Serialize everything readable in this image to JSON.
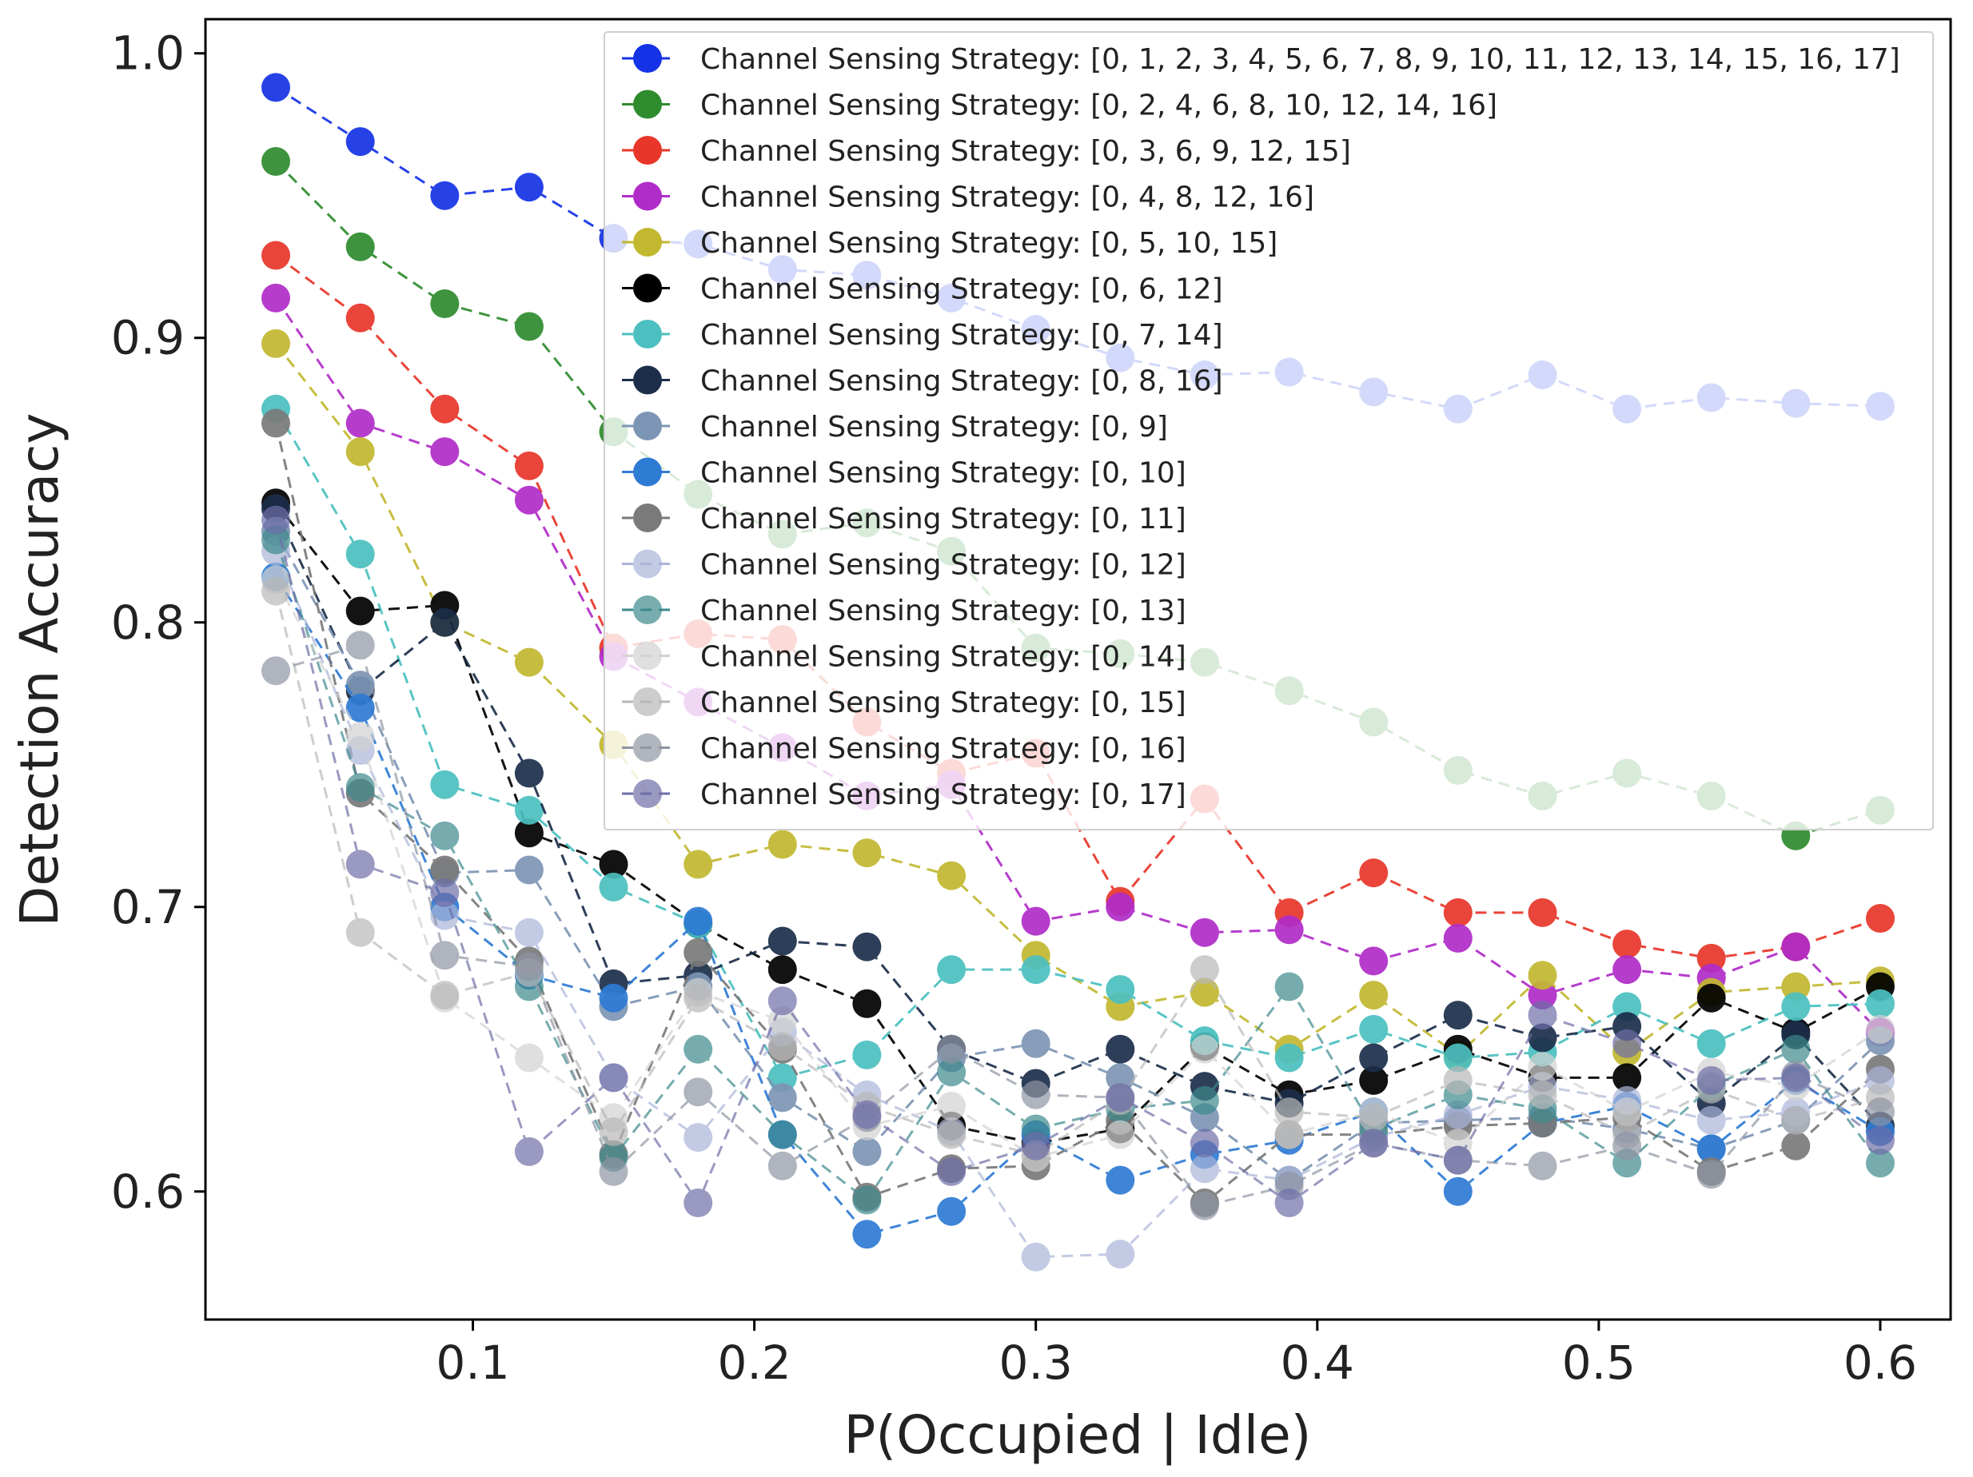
{
  "chart_data": {
    "type": "line",
    "title": "",
    "xlabel": "P(Occupied | Idle)",
    "ylabel": "Detection Accuracy",
    "xlim": [
      0.005,
      0.625
    ],
    "ylim": [
      0.555,
      1.012
    ],
    "xticks": [
      0.1,
      0.2,
      0.3,
      0.4,
      0.5,
      0.6
    ],
    "xtick_labels": [
      "0.1",
      "0.2",
      "0.3",
      "0.4",
      "0.5",
      "0.6"
    ],
    "yticks": [
      0.6,
      0.7,
      0.8,
      0.9,
      1.0
    ],
    "ytick_labels": [
      "0.6",
      "0.7",
      "0.8",
      "0.9",
      "1.0"
    ],
    "grid": false,
    "legend_position": "top-right",
    "line_style": "dashed",
    "marker": "circle",
    "x": [
      0.03,
      0.06,
      0.09,
      0.12,
      0.15,
      0.18,
      0.21,
      0.24,
      0.27,
      0.3,
      0.33,
      0.36,
      0.39,
      0.42,
      0.45,
      0.48,
      0.51,
      0.54,
      0.57,
      0.6
    ],
    "series": [
      {
        "name": "Channel Sensing Strategy: [0, 1, 2, 3, 4, 5, 6, 7, 8, 9, 10, 11, 12, 13, 14, 15, 16, 17]",
        "color": "#1432e6",
        "values": [
          0.988,
          0.969,
          0.95,
          0.953,
          0.935,
          0.933,
          0.924,
          0.922,
          0.914,
          0.903,
          0.893,
          0.887,
          0.888,
          0.881,
          0.875,
          0.887,
          0.875,
          0.879,
          0.877,
          0.876
        ]
      },
      {
        "name": "Channel Sensing Strategy: [0, 2, 4, 6, 8, 10, 12, 14, 16]",
        "color": "#2e8b2e",
        "values": [
          0.962,
          0.932,
          0.912,
          0.904,
          0.867,
          0.845,
          0.831,
          0.835,
          0.825,
          0.791,
          0.789,
          0.786,
          0.776,
          0.765,
          0.748,
          0.739,
          0.747,
          0.739,
          0.725,
          0.734
        ]
      },
      {
        "name": "Channel Sensing Strategy: [0, 3, 6, 9, 12, 15]",
        "color": "#e8362a",
        "values": [
          0.929,
          0.907,
          0.875,
          0.855,
          0.791,
          0.796,
          0.794,
          0.765,
          0.747,
          0.754,
          0.702,
          0.738,
          0.698,
          0.712,
          0.698,
          0.698,
          0.687,
          0.682,
          0.686,
          0.696
        ]
      },
      {
        "name": "Channel Sensing Strategy: [0, 4, 8, 12, 16]",
        "color": "#b02cc8",
        "values": [
          0.914,
          0.87,
          0.86,
          0.843,
          0.788,
          0.772,
          0.756,
          0.739,
          0.743,
          0.695,
          0.7,
          0.691,
          0.692,
          0.681,
          0.689,
          0.669,
          0.678,
          0.675,
          0.686,
          0.656
        ]
      },
      {
        "name": "Channel Sensing Strategy: [0, 5, 10, 15]",
        "color": "#c2b830",
        "values": [
          0.898,
          0.86,
          0.8,
          0.786,
          0.757,
          0.715,
          0.722,
          0.719,
          0.711,
          0.683,
          0.665,
          0.67,
          0.65,
          0.669,
          0.648,
          0.676,
          0.649,
          0.67,
          0.672,
          0.674
        ]
      },
      {
        "name": "Channel Sensing Strategy: [0, 6, 12]",
        "color": "#000000",
        "values": [
          0.842,
          0.804,
          0.806,
          0.726,
          0.715,
          0.694,
          0.678,
          0.666,
          0.623,
          0.617,
          0.622,
          0.651,
          0.634,
          0.639,
          0.65,
          0.64,
          0.64,
          0.668,
          0.656,
          0.672
        ]
      },
      {
        "name": "Channel Sensing Strategy: [0, 7, 14]",
        "color": "#4cc0c0",
        "values": [
          0.875,
          0.824,
          0.743,
          0.734,
          0.707,
          0.694,
          0.64,
          0.648,
          0.678,
          0.678,
          0.671,
          0.653,
          0.647,
          0.657,
          0.647,
          0.649,
          0.665,
          0.652,
          0.665,
          0.666
        ]
      },
      {
        "name": "Channel Sensing Strategy: [0, 8, 16]",
        "color": "#1c2e4a",
        "values": [
          0.84,
          0.776,
          0.8,
          0.747,
          0.673,
          0.676,
          0.688,
          0.686,
          0.65,
          0.638,
          0.65,
          0.637,
          0.631,
          0.647,
          0.662,
          0.654,
          0.658,
          0.631,
          0.655,
          0.623
        ]
      },
      {
        "name": "Channel Sensing Strategy: [0, 9]",
        "color": "#7d95b5",
        "values": [
          0.832,
          0.778,
          0.712,
          0.713,
          0.665,
          0.672,
          0.633,
          0.614,
          0.647,
          0.652,
          0.64,
          0.626,
          0.604,
          0.624,
          0.625,
          0.626,
          0.622,
          0.615,
          0.625,
          0.653
        ]
      },
      {
        "name": "Channel Sensing Strategy: [0, 10]",
        "color": "#2e7bd4",
        "values": [
          0.816,
          0.77,
          0.7,
          0.676,
          0.668,
          0.695,
          0.62,
          0.585,
          0.593,
          0.62,
          0.604,
          0.613,
          0.618,
          0.628,
          0.6,
          0.624,
          0.63,
          0.615,
          0.639,
          0.621
        ]
      },
      {
        "name": "Channel Sensing Strategy: [0, 11]",
        "color": "#7a7a7a",
        "values": [
          0.87,
          0.74,
          0.713,
          0.681,
          0.613,
          0.684,
          0.65,
          0.598,
          0.608,
          0.609,
          0.625,
          0.596,
          0.62,
          0.62,
          0.623,
          0.624,
          0.626,
          0.607,
          0.616,
          0.643
        ]
      },
      {
        "name": "Channel Sensing Strategy: [0, 12]",
        "color": "#aab4d8",
        "values": [
          0.825,
          0.755,
          0.697,
          0.691,
          0.64,
          0.619,
          0.656,
          0.634,
          0.621,
          0.577,
          0.578,
          0.608,
          0.604,
          0.619,
          0.627,
          0.637,
          0.632,
          0.625,
          0.628,
          0.639
        ]
      },
      {
        "name": "Channel Sensing Strategy: [0, 13]",
        "color": "#3d8a8c",
        "values": [
          0.829,
          0.742,
          0.725,
          0.672,
          0.612,
          0.65,
          0.62,
          0.597,
          0.642,
          0.622,
          0.629,
          0.632,
          0.672,
          0.622,
          0.634,
          0.629,
          0.61,
          0.637,
          0.65,
          0.61
        ]
      },
      {
        "name": "Channel Sensing Strategy: [0, 14]",
        "color": "#d2d2d2",
        "values": [
          0.815,
          0.76,
          0.668,
          0.647,
          0.626,
          0.67,
          0.66,
          0.623,
          0.63,
          0.612,
          0.62,
          0.65,
          0.62,
          0.628,
          0.617,
          0.644,
          0.628,
          0.642,
          0.637,
          0.657
        ]
      },
      {
        "name": "Channel Sensing Strategy: [0, 15]",
        "color": "#b8b8b8",
        "values": [
          0.811,
          0.691,
          0.669,
          0.677,
          0.621,
          0.668,
          0.651,
          0.63,
          0.62,
          0.613,
          0.632,
          0.678,
          0.628,
          0.626,
          0.639,
          0.634,
          0.62,
          0.636,
          0.625,
          0.633
        ]
      },
      {
        "name": "Channel Sensing Strategy: [0, 16]",
        "color": "#8e95a3",
        "values": [
          0.783,
          0.792,
          0.683,
          0.679,
          0.607,
          0.635,
          0.609,
          0.626,
          0.65,
          0.634,
          0.633,
          0.595,
          0.602,
          0.617,
          0.611,
          0.609,
          0.616,
          0.606,
          0.641,
          0.628
        ]
      },
      {
        "name": "Channel Sensing Strategy: [0, 17]",
        "color": "#6e6ea8",
        "values": [
          0.836,
          0.715,
          0.705,
          0.614,
          0.64,
          0.596,
          0.667,
          0.627,
          0.607,
          0.616,
          0.633,
          0.617,
          0.596,
          0.617,
          0.611,
          0.662,
          0.652,
          0.639,
          0.64,
          0.618
        ]
      }
    ]
  }
}
